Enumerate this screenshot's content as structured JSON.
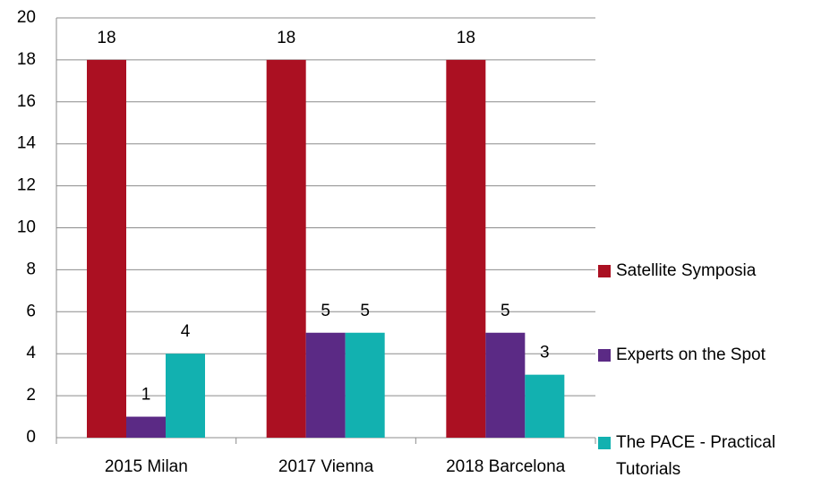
{
  "chart_data": {
    "type": "bar",
    "categories": [
      "2015 Milan",
      "2017 Vienna",
      "2018 Barcelona"
    ],
    "series": [
      {
        "name": "Satellite Symposia",
        "color": "#ab1022",
        "values": [
          18,
          18,
          18
        ]
      },
      {
        "name": "Experts on the Spot",
        "color": "#5b2a85",
        "values": [
          1,
          5,
          5
        ]
      },
      {
        "name": "The PACE - Practical Tutorials",
        "color": "#12b1b0",
        "values": [
          4,
          5,
          3
        ]
      }
    ],
    "ylim": [
      0,
      20
    ],
    "yticks": [
      0,
      2,
      4,
      6,
      8,
      10,
      12,
      14,
      16,
      18,
      20
    ],
    "grid": true,
    "legend": "right"
  }
}
